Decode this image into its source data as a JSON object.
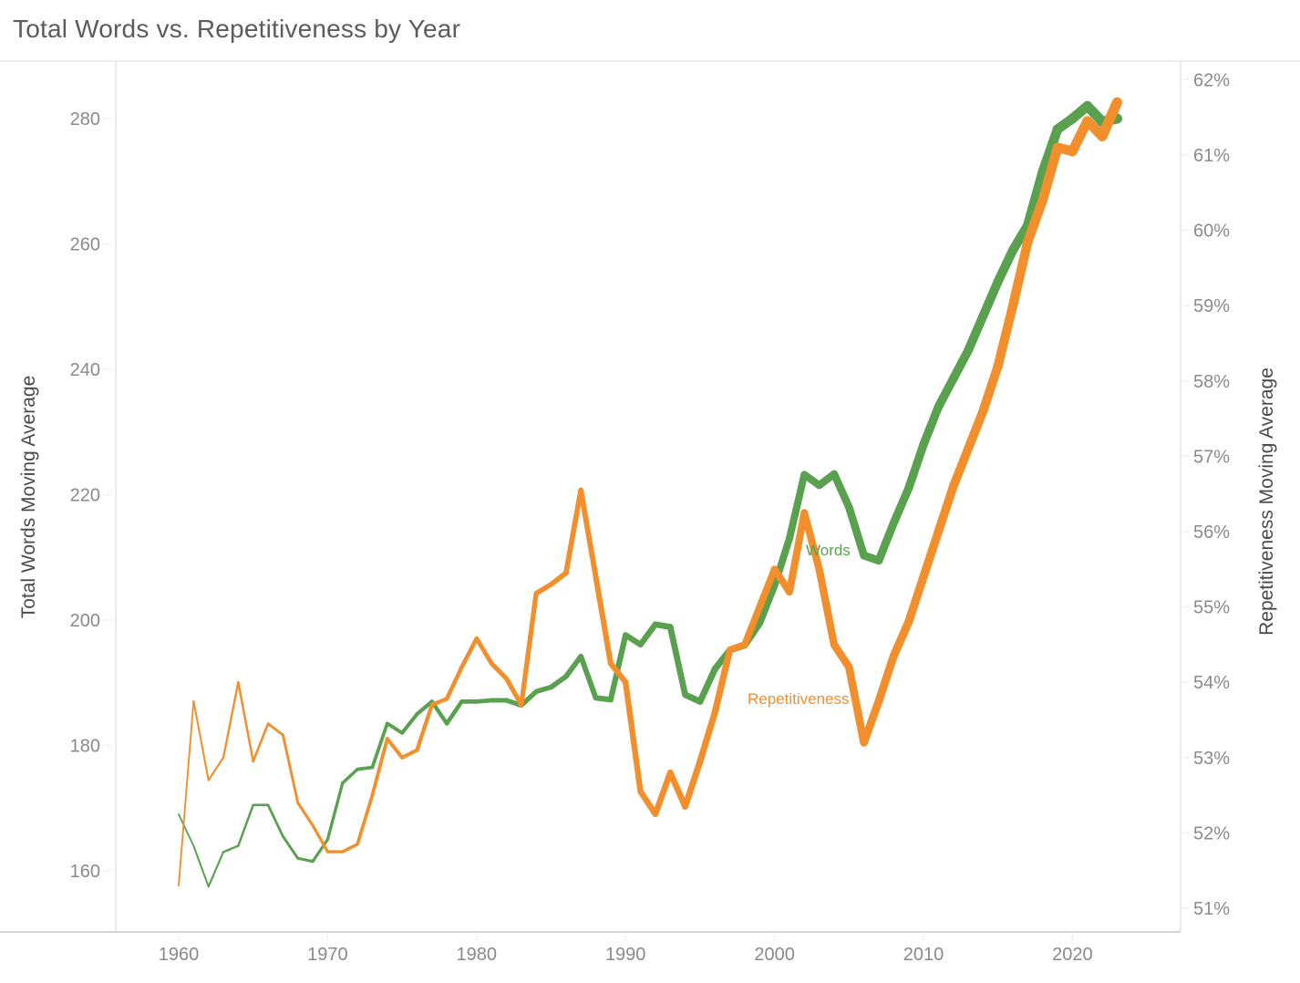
{
  "title": "Total Words vs. Repetitiveness by Year",
  "chart_data": {
    "type": "line",
    "title": "Total Words vs. Repetitiveness by Year",
    "grid": false,
    "legend": "inline labels on lines",
    "size_encoding": "line width increases with year (thin in 1960, thick in 2023)",
    "x_axis": {
      "tick_labels": [
        "1960",
        "1970",
        "1980",
        "1990",
        "2000",
        "2010",
        "2020"
      ],
      "tick_values": [
        1960,
        1970,
        1980,
        1990,
        2000,
        2010,
        2020
      ],
      "range": [
        1956,
        2024.5
      ]
    },
    "left_axis": {
      "title": "Total Words Moving Average",
      "tick_labels": [
        "280",
        "260",
        "240",
        "220",
        "200",
        "180",
        "160"
      ],
      "tick_values": [
        280,
        260,
        240,
        220,
        200,
        180,
        160
      ],
      "range": [
        150.3,
        289.2
      ]
    },
    "right_axis": {
      "title": "Repetitiveness Moving Average",
      "tick_labels": [
        "62%",
        "61%",
        "60%",
        "59%",
        "58%",
        "57%",
        "56%",
        "55%",
        "54%",
        "53%",
        "52%",
        "51%"
      ],
      "tick_values": [
        62,
        61,
        60,
        59,
        58,
        57,
        56,
        55,
        54,
        53,
        52,
        51
      ],
      "range": [
        50.7,
        62.3
      ]
    },
    "years": [
      1960,
      1961,
      1962,
      1963,
      1964,
      1965,
      1966,
      1967,
      1968,
      1969,
      1970,
      1971,
      1972,
      1973,
      1974,
      1975,
      1976,
      1977,
      1978,
      1979,
      1980,
      1981,
      1982,
      1983,
      1984,
      1985,
      1986,
      1987,
      1988,
      1989,
      1990,
      1991,
      1992,
      1993,
      1994,
      1995,
      1996,
      1997,
      1998,
      1999,
      2000,
      2001,
      2002,
      2003,
      2004,
      2005,
      2006,
      2007,
      2008,
      2009,
      2010,
      2011,
      2012,
      2013,
      2014,
      2015,
      2016,
      2017,
      2018,
      2019,
      2020,
      2021,
      2022,
      2023
    ],
    "series": [
      {
        "name": "Words",
        "label": "Words",
        "axis": "left",
        "color": "#59A14F",
        "values": [
          169,
          164,
          157.5,
          163,
          164,
          170.5,
          170.5,
          165.5,
          162,
          161.5,
          165,
          174,
          176.2,
          176.5,
          183.5,
          182,
          185,
          187,
          183.5,
          187,
          187,
          187.2,
          187.2,
          186.4,
          188.6,
          189.3,
          191,
          194.2,
          187.6,
          187.3,
          197.6,
          196.1,
          199.3,
          198.9,
          188.1,
          187,
          192.2,
          195.2,
          196,
          199.5,
          205.5,
          213,
          223.2,
          221.5,
          223.3,
          218,
          210.3,
          209.5,
          215.5,
          221,
          228,
          234,
          238.5,
          243,
          248.5,
          254,
          259,
          263,
          271.5,
          278.3,
          280,
          282,
          279.5,
          280
        ]
      },
      {
        "name": "Repetitiveness",
        "label": "Repetitiveness",
        "axis": "right",
        "color": "#F28E2B",
        "values": [
          51.3,
          53.75,
          52.7,
          53.0,
          54.0,
          52.95,
          53.45,
          53.3,
          52.4,
          52.1,
          51.75,
          51.75,
          51.85,
          52.5,
          53.25,
          53.0,
          53.1,
          53.7,
          53.78,
          54.2,
          54.58,
          54.25,
          54.05,
          53.7,
          55.18,
          55.3,
          55.45,
          56.55,
          55.4,
          54.25,
          54.0,
          52.55,
          52.25,
          52.8,
          52.35,
          52.95,
          53.6,
          54.43,
          54.5,
          55.0,
          55.5,
          55.2,
          56.25,
          55.5,
          54.5,
          54.2,
          53.2,
          53.75,
          54.35,
          54.8,
          55.4,
          56.0,
          56.6,
          57.1,
          57.6,
          58.2,
          59.0,
          59.85,
          60.4,
          61.1,
          61.05,
          61.45,
          61.25,
          61.7
        ]
      }
    ]
  }
}
